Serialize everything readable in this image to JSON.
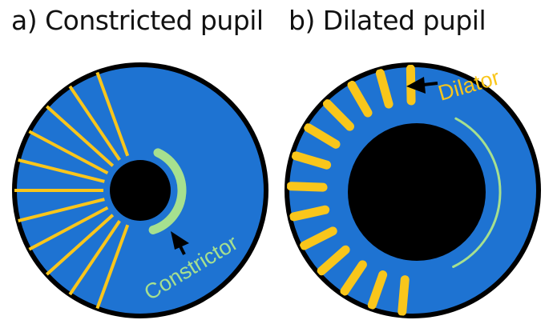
{
  "panel_a": {
    "title": "a) Constricted pupil",
    "label": "Constrictor"
  },
  "panel_b": {
    "title": "b) Dilated pupil",
    "label": "Dilator"
  },
  "colors": {
    "iris": "#1e73d2",
    "outline": "#000000",
    "pupil": "#000000",
    "dilator_muscle": "#f9c61b",
    "constrictor_muscle": "#a6e08f",
    "arrow": "#000000"
  }
}
